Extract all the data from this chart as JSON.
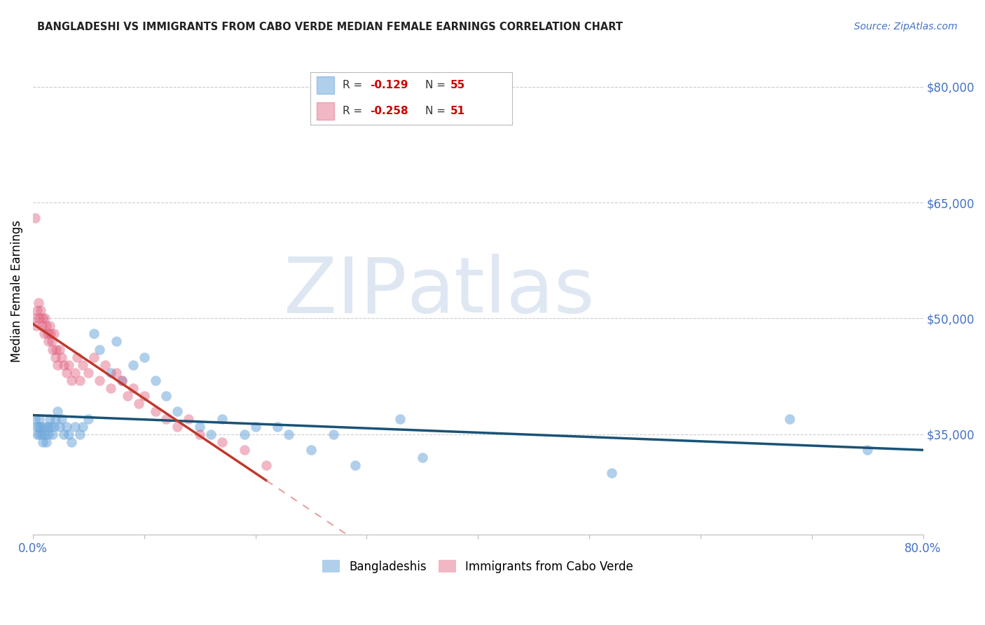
{
  "title": "BANGLADESHI VS IMMIGRANTS FROM CABO VERDE MEDIAN FEMALE EARNINGS CORRELATION CHART",
  "source": "Source: ZipAtlas.com",
  "ylabel": "Median Female Earnings",
  "xlim": [
    0.0,
    0.8
  ],
  "ylim": [
    22000,
    85000
  ],
  "yticks": [
    35000,
    50000,
    65000,
    80000
  ],
  "ytick_labels": [
    "$35,000",
    "$50,000",
    "$65,000",
    "$80,000"
  ],
  "xticks": [
    0.0,
    0.1,
    0.2,
    0.3,
    0.4,
    0.5,
    0.6,
    0.7,
    0.8
  ],
  "xtick_labels": [
    "0.0%",
    "",
    "",
    "",
    "",
    "",
    "",
    "",
    "80.0%"
  ],
  "blue_color": "#6fa8dc",
  "pink_color": "#e06080",
  "blue_line_color": "#1a5276",
  "pink_line_color": "#c0392b",
  "pink_dash_color": "#e8a0a0",
  "legend_R_blue": "-0.129",
  "legend_N_blue": "55",
  "legend_R_pink": "-0.258",
  "legend_N_pink": "51",
  "blue_scatter_x": [
    0.002,
    0.003,
    0.004,
    0.005,
    0.006,
    0.006,
    0.007,
    0.008,
    0.009,
    0.01,
    0.011,
    0.012,
    0.013,
    0.014,
    0.015,
    0.016,
    0.018,
    0.019,
    0.02,
    0.022,
    0.024,
    0.026,
    0.028,
    0.03,
    0.032,
    0.035,
    0.038,
    0.042,
    0.045,
    0.05,
    0.055,
    0.06,
    0.07,
    0.075,
    0.08,
    0.09,
    0.1,
    0.11,
    0.12,
    0.13,
    0.15,
    0.16,
    0.17,
    0.19,
    0.2,
    0.22,
    0.23,
    0.25,
    0.27,
    0.29,
    0.33,
    0.35,
    0.52,
    0.68,
    0.75
  ],
  "blue_scatter_y": [
    37000,
    36000,
    35000,
    36000,
    37000,
    35000,
    36000,
    35000,
    34000,
    36000,
    35000,
    34000,
    36000,
    35000,
    37000,
    36000,
    35000,
    36000,
    37000,
    38000,
    36000,
    37000,
    35000,
    36000,
    35000,
    34000,
    36000,
    35000,
    36000,
    37000,
    48000,
    46000,
    43000,
    47000,
    42000,
    44000,
    45000,
    42000,
    40000,
    38000,
    36000,
    35000,
    37000,
    35000,
    36000,
    36000,
    35000,
    33000,
    35000,
    31000,
    37000,
    32000,
    30000,
    37000,
    33000
  ],
  "pink_scatter_x": [
    0.002,
    0.003,
    0.004,
    0.005,
    0.006,
    0.007,
    0.008,
    0.009,
    0.01,
    0.011,
    0.012,
    0.013,
    0.014,
    0.015,
    0.016,
    0.017,
    0.018,
    0.019,
    0.02,
    0.021,
    0.022,
    0.024,
    0.026,
    0.028,
    0.03,
    0.032,
    0.035,
    0.038,
    0.04,
    0.042,
    0.045,
    0.05,
    0.055,
    0.06,
    0.065,
    0.07,
    0.075,
    0.08,
    0.085,
    0.09,
    0.095,
    0.1,
    0.11,
    0.12,
    0.13,
    0.14,
    0.15,
    0.17,
    0.19,
    0.21,
    0.002
  ],
  "pink_scatter_y": [
    50000,
    49000,
    51000,
    52000,
    50000,
    51000,
    49000,
    50000,
    48000,
    50000,
    49000,
    48000,
    47000,
    49000,
    48000,
    47000,
    46000,
    48000,
    45000,
    46000,
    44000,
    46000,
    45000,
    44000,
    43000,
    44000,
    42000,
    43000,
    45000,
    42000,
    44000,
    43000,
    45000,
    42000,
    44000,
    41000,
    43000,
    42000,
    40000,
    41000,
    39000,
    40000,
    38000,
    37000,
    36000,
    37000,
    35000,
    34000,
    33000,
    31000,
    63000
  ],
  "watermark_zip": "ZIP",
  "watermark_atlas": "atlas",
  "background_color": "#ffffff"
}
